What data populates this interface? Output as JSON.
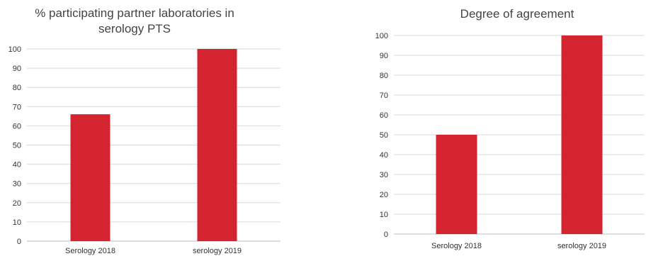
{
  "chart_data": [
    {
      "type": "bar",
      "title_lines": [
        "% participating partner laboratories in",
        "serology PTS"
      ],
      "categories": [
        "Serology 2018",
        "serology 2019"
      ],
      "values": [
        66,
        100
      ],
      "ylim": [
        0,
        100
      ],
      "yticks": [
        0,
        10,
        20,
        30,
        40,
        50,
        60,
        70,
        80,
        90,
        100
      ],
      "grid": true,
      "legend": "none",
      "bar_color": "#d32430"
    },
    {
      "type": "bar",
      "title_lines": [
        "Degree of agreement"
      ],
      "categories": [
        "Serology 2018",
        "serology 2019"
      ],
      "values": [
        50,
        100
      ],
      "ylim": [
        0,
        100
      ],
      "yticks": [
        0,
        10,
        20,
        30,
        40,
        50,
        60,
        70,
        80,
        90,
        100
      ],
      "grid": true,
      "legend": "none",
      "bar_color": "#d32430"
    }
  ]
}
